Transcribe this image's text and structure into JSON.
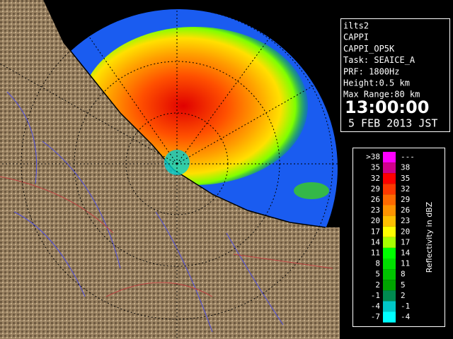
{
  "info_panel": {
    "lines": [
      "ilts2",
      "CAPPI",
      "CAPPI_OP5K",
      "Task: SEAICE_A",
      "PRF: 1800Hz",
      "Height:0.5 km",
      "Max Range:80 km"
    ],
    "time": "13:00:00",
    "date": "5 FEB 2013 JST"
  },
  "legend": {
    "title": "Reflectivity in dBZ",
    "rows": [
      {
        "low": ">38",
        "high": "---",
        "color": "#ff00ff"
      },
      {
        "low": "35",
        "high": "38",
        "color": "#d2008c"
      },
      {
        "low": "32",
        "high": "35",
        "color": "#ff0000"
      },
      {
        "low": "29",
        "high": "32",
        "color": "#ff3800"
      },
      {
        "low": "26",
        "high": "29",
        "color": "#ff6a00"
      },
      {
        "low": "23",
        "high": "26",
        "color": "#ff9400"
      },
      {
        "low": "20",
        "high": "23",
        "color": "#ffc000"
      },
      {
        "low": "17",
        "high": "20",
        "color": "#ffff00"
      },
      {
        "low": "14",
        "high": "17",
        "color": "#a8ff00"
      },
      {
        "low": "11",
        "high": "14",
        "color": "#00ff00"
      },
      {
        "low": "8",
        "high": "11",
        "color": "#00e000"
      },
      {
        "low": "5",
        "high": "8",
        "color": "#00c400"
      },
      {
        "low": "2",
        "high": "5",
        "color": "#00a400"
      },
      {
        "low": "-1",
        "high": "2",
        "color": "#008a50"
      },
      {
        "low": "-4",
        "high": "-1",
        "color": "#00c8c8"
      },
      {
        "low": "-7",
        "high": "-4",
        "color": "#00ffff"
      }
    ]
  }
}
